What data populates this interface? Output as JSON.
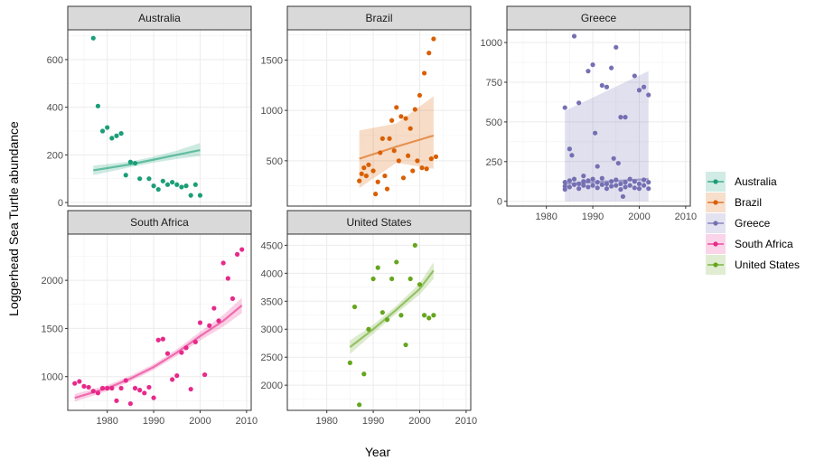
{
  "chart_data": {
    "type": "scatter",
    "title": "",
    "xlabel": "Year",
    "ylabel": "Loggerhead Sea Turtle abundance",
    "xlim": [
      1971.5,
      2011
    ],
    "x_ticks": [
      1980,
      1990,
      2000,
      2010
    ],
    "grid": true,
    "legend_position": "right",
    "facet_layout": "3 columns, 2 rows",
    "colors": {
      "Australia": "#1b9e77",
      "Brazil": "#d95f02",
      "Greece": "#7570b3",
      "South Africa": "#e7298a",
      "United States": "#66a61e"
    },
    "legend": {
      "items": [
        {
          "label": "Australia",
          "color": "#1b9e77"
        },
        {
          "label": "Brazil",
          "color": "#d95f02"
        },
        {
          "label": "Greece",
          "color": "#7570b3"
        },
        {
          "label": "South Africa",
          "color": "#e7298a"
        },
        {
          "label": "United States",
          "color": "#66a61e"
        }
      ]
    },
    "panels": [
      {
        "name": "Australia",
        "ylim": [
          -15,
          725
        ],
        "y_ticks": [
          0,
          200,
          400,
          600
        ],
        "show_x_ticks": false,
        "points": [
          [
            1977,
            690
          ],
          [
            1978,
            405
          ],
          [
            1979,
            300
          ],
          [
            1980,
            315
          ],
          [
            1981,
            270
          ],
          [
            1982,
            280
          ],
          [
            1983,
            290
          ],
          [
            1984,
            115
          ],
          [
            1985,
            170
          ],
          [
            1986,
            165
          ],
          [
            1987,
            100
          ],
          [
            1989,
            100
          ],
          [
            1990,
            70
          ],
          [
            1991,
            55
          ],
          [
            1992,
            90
          ],
          [
            1993,
            75
          ],
          [
            1994,
            85
          ],
          [
            1995,
            75
          ],
          [
            1996,
            65
          ],
          [
            1997,
            70
          ],
          [
            1998,
            30
          ],
          [
            1999,
            75
          ],
          [
            2000,
            30
          ]
        ],
        "fit": [
          [
            1977,
            135
          ],
          [
            1985,
            160
          ],
          [
            1990,
            180
          ],
          [
            1995,
            200
          ],
          [
            2000,
            220
          ]
        ],
        "band": [
          [
            1977,
            115,
            155
          ],
          [
            1985,
            148,
            172
          ],
          [
            1990,
            167,
            193
          ],
          [
            1995,
            183,
            218
          ],
          [
            2000,
            195,
            250
          ]
        ]
      },
      {
        "name": "Brazil",
        "ylim": [
          50,
          1800
        ],
        "y_ticks": [
          500,
          1000,
          1500
        ],
        "show_x_ticks": false,
        "points": [
          [
            1987,
            300
          ],
          [
            1987.5,
            370
          ],
          [
            1988,
            430
          ],
          [
            1988.5,
            350
          ],
          [
            1989,
            460
          ],
          [
            1990,
            400
          ],
          [
            1990.5,
            170
          ],
          [
            1991,
            290
          ],
          [
            1991.5,
            580
          ],
          [
            1992,
            720
          ],
          [
            1992.5,
            350
          ],
          [
            1993,
            220
          ],
          [
            1993.5,
            720
          ],
          [
            1994,
            900
          ],
          [
            1994.5,
            600
          ],
          [
            1995,
            1030
          ],
          [
            1995.5,
            500
          ],
          [
            1996,
            940
          ],
          [
            1996.5,
            330
          ],
          [
            1997,
            920
          ],
          [
            1997.5,
            550
          ],
          [
            1998,
            820
          ],
          [
            1998.5,
            400
          ],
          [
            1999,
            1010
          ],
          [
            1999.5,
            500
          ],
          [
            2000,
            1150
          ],
          [
            2000.5,
            430
          ],
          [
            2001,
            1370
          ],
          [
            2001.5,
            420
          ],
          [
            2002,
            1570
          ],
          [
            2002.5,
            520
          ],
          [
            2003,
            1710
          ],
          [
            2003.5,
            540
          ]
        ],
        "fit": [
          [
            1987,
            520
          ],
          [
            1995,
            640
          ],
          [
            2003,
            750
          ]
        ],
        "band": [
          [
            1987,
            230,
            800
          ],
          [
            1995,
            480,
            870
          ],
          [
            2003,
            420,
            1140
          ]
        ]
      },
      {
        "name": "Greece",
        "ylim": [
          -30,
          1080
        ],
        "y_ticks": [
          0,
          250,
          500,
          750,
          1000
        ],
        "show_x_ticks": true,
        "points": [
          [
            1984,
            590
          ],
          [
            1985,
            330
          ],
          [
            1985.5,
            290
          ],
          [
            1986,
            1040
          ],
          [
            1987,
            620
          ],
          [
            1988,
            160
          ],
          [
            1989,
            820
          ],
          [
            1990,
            860
          ],
          [
            1990.5,
            430
          ],
          [
            1991,
            220
          ],
          [
            1992,
            730
          ],
          [
            1993,
            720
          ],
          [
            1994,
            840
          ],
          [
            1994.5,
            270
          ],
          [
            1995,
            970
          ],
          [
            1995.5,
            240
          ],
          [
            1996,
            530
          ],
          [
            1996.5,
            30
          ],
          [
            1997,
            530
          ],
          [
            1999,
            790
          ],
          [
            2000,
            700
          ],
          [
            2001,
            720
          ],
          [
            2002,
            670
          ],
          [
            1984,
            120
          ],
          [
            1984,
            95
          ],
          [
            1984,
            75
          ],
          [
            1985,
            130
          ],
          [
            1985,
            90
          ],
          [
            1986,
            105
          ],
          [
            1986,
            140
          ],
          [
            1987,
            110
          ],
          [
            1987,
            80
          ],
          [
            1988,
            125
          ],
          [
            1988,
            100
          ],
          [
            1989,
            90
          ],
          [
            1989,
            130
          ],
          [
            1990,
            140
          ],
          [
            1990,
            100
          ],
          [
            1991,
            120
          ],
          [
            1991,
            85
          ],
          [
            1992,
            105
          ],
          [
            1992,
            145
          ],
          [
            1993,
            110
          ],
          [
            1993,
            80
          ],
          [
            1994,
            125
          ],
          [
            1994,
            95
          ],
          [
            1995,
            135
          ],
          [
            1995,
            100
          ],
          [
            1996,
            110
          ],
          [
            1996,
            75
          ],
          [
            1997,
            120
          ],
          [
            1997,
            90
          ],
          [
            1998,
            140
          ],
          [
            1998,
            100
          ],
          [
            1999,
            125
          ],
          [
            1999,
            85
          ],
          [
            2000,
            110
          ],
          [
            2000,
            80
          ],
          [
            2001,
            135
          ],
          [
            2001,
            100
          ],
          [
            2002,
            120
          ],
          [
            2002,
            80
          ]
        ],
        "fit": [
          [
            1984,
            110
          ],
          [
            2002,
            140
          ]
        ],
        "band": [
          [
            1984,
            0,
            570
          ],
          [
            2002,
            0,
            820
          ]
        ]
      },
      {
        "name": "South Africa",
        "ylim": [
          650,
          2480
        ],
        "y_ticks": [
          1000,
          1500,
          2000
        ],
        "show_x_ticks": true,
        "points": [
          [
            1973,
            930
          ],
          [
            1974,
            950
          ],
          [
            1975,
            900
          ],
          [
            1976,
            890
          ],
          [
            1977,
            850
          ],
          [
            1978,
            830
          ],
          [
            1979,
            880
          ],
          [
            1980,
            880
          ],
          [
            1981,
            880
          ],
          [
            1982,
            750
          ],
          [
            1983,
            880
          ],
          [
            1984,
            960
          ],
          [
            1985,
            720
          ],
          [
            1986,
            880
          ],
          [
            1987,
            860
          ],
          [
            1988,
            830
          ],
          [
            1989,
            890
          ],
          [
            1990,
            780
          ],
          [
            1991,
            1380
          ],
          [
            1992,
            1390
          ],
          [
            1993,
            1240
          ],
          [
            1994,
            970
          ],
          [
            1995,
            1010
          ],
          [
            1996,
            1250
          ],
          [
            1997,
            1300
          ],
          [
            1998,
            870
          ],
          [
            1999,
            1360
          ],
          [
            2000,
            1560
          ],
          [
            2001,
            1020
          ],
          [
            2002,
            1530
          ],
          [
            2003,
            1710
          ],
          [
            2004,
            1580
          ],
          [
            2005,
            2180
          ],
          [
            2006,
            2020
          ],
          [
            2007,
            1810
          ],
          [
            2008,
            2270
          ],
          [
            2009,
            2320
          ]
        ],
        "fit": [
          [
            1973,
            780
          ],
          [
            1980,
            880
          ],
          [
            1985,
            980
          ],
          [
            1990,
            1100
          ],
          [
            1995,
            1250
          ],
          [
            2000,
            1420
          ],
          [
            2005,
            1580
          ],
          [
            2009,
            1740
          ]
        ],
        "band": [
          [
            1973,
            740,
            820
          ],
          [
            1980,
            850,
            910
          ],
          [
            1985,
            950,
            1010
          ],
          [
            1990,
            1070,
            1130
          ],
          [
            1995,
            1215,
            1285
          ],
          [
            2000,
            1375,
            1465
          ],
          [
            2005,
            1520,
            1640
          ],
          [
            2009,
            1660,
            1820
          ]
        ]
      },
      {
        "name": "United States",
        "ylim": [
          1550,
          4700
        ],
        "y_ticks": [
          2000,
          2500,
          3000,
          3500,
          4000,
          4500
        ],
        "show_x_ticks": true,
        "points": [
          [
            1985,
            2400
          ],
          [
            1986,
            3400
          ],
          [
            1987,
            1650
          ],
          [
            1988,
            2200
          ],
          [
            1989,
            3000
          ],
          [
            1990,
            3900
          ],
          [
            1991,
            4100
          ],
          [
            1992,
            3300
          ],
          [
            1993,
            3170
          ],
          [
            1994,
            3900
          ],
          [
            1995,
            4200
          ],
          [
            1996,
            3250
          ],
          [
            1997,
            2720
          ],
          [
            1998,
            3900
          ],
          [
            1999,
            4500
          ],
          [
            2000,
            3800
          ],
          [
            2001,
            3250
          ],
          [
            2002,
            3200
          ],
          [
            2003,
            3250
          ]
        ],
        "fit": [
          [
            1985,
            2680
          ],
          [
            1990,
            3000
          ],
          [
            1995,
            3350
          ],
          [
            2000,
            3720
          ],
          [
            2003,
            4050
          ]
        ],
        "band": [
          [
            1985,
            2560,
            2800
          ],
          [
            1990,
            2920,
            3080
          ],
          [
            1995,
            3280,
            3420
          ],
          [
            2000,
            3620,
            3820
          ],
          [
            2003,
            3900,
            4200
          ]
        ]
      }
    ]
  }
}
